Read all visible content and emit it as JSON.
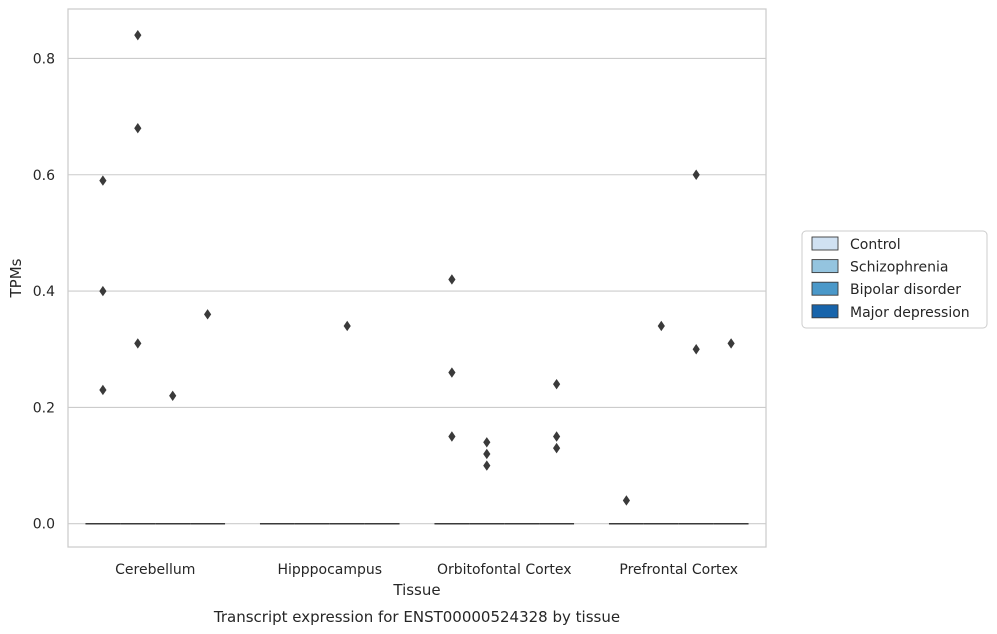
{
  "chart_data": {
    "type": "box",
    "xlabel": "Tissue",
    "ylabel": "TPMs",
    "caption": "Transcript expression for ENST00000524328 by tissue",
    "ylim": [
      -0.04,
      0.885
    ],
    "yticks": [
      0.0,
      0.2,
      0.4,
      0.6,
      0.8
    ],
    "ytick_labels": [
      "0.0",
      "0.2",
      "0.4",
      "0.6",
      "0.8"
    ],
    "grid": "horizontal",
    "legend_position": "right",
    "categories": [
      "Cerebellum",
      "Hipppocampus",
      "Orbitofontal Cortex",
      "Prefrontal Cortex"
    ],
    "series": [
      {
        "name": "Control",
        "color": "#d0e1f2",
        "median": [
          0,
          0,
          0,
          0
        ],
        "outliers": [
          [
            0.59,
            0.4,
            0.23
          ],
          [],
          [
            0.42,
            0.26,
            0.15
          ],
          [
            0.04
          ]
        ]
      },
      {
        "name": "Schizophrenia",
        "color": "#94c4df",
        "median": [
          0,
          0,
          0,
          0
        ],
        "outliers": [
          [
            0.84,
            0.68,
            0.31
          ],
          [],
          [
            0.14,
            0.12,
            0.1
          ],
          [
            0.34
          ]
        ]
      },
      {
        "name": "Bipolar disorder",
        "color": "#4a98c9",
        "median": [
          0,
          0,
          0,
          0
        ],
        "outliers": [
          [
            0.22
          ],
          [
            0.34
          ],
          [],
          [
            0.6,
            0.3
          ]
        ]
      },
      {
        "name": "Major depression",
        "color": "#1764ab",
        "median": [
          0,
          0,
          0,
          0
        ],
        "outliers": [
          [
            0.36
          ],
          [],
          [
            0.24,
            0.15,
            0.13
          ],
          [
            0.31
          ]
        ]
      }
    ]
  }
}
